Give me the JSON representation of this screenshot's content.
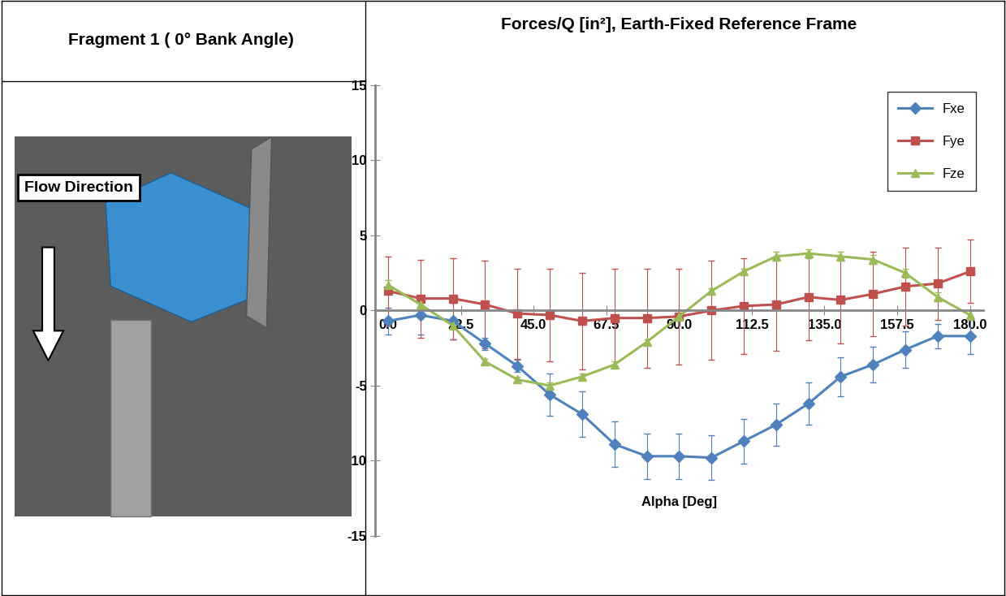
{
  "panel": {
    "title": "Fragment 1 ( 0° Bank Angle)",
    "label": "Flow Direction"
  },
  "chart_data": {
    "type": "line",
    "title": "Forces/Q [in²], Earth-Fixed Reference Frame",
    "x_label": "Alpha [Deg]",
    "x": [
      0,
      10,
      20,
      30,
      40,
      50,
      60,
      70,
      80,
      90,
      100,
      110,
      120,
      130,
      140,
      150,
      160,
      170,
      180
    ],
    "xlim": [
      -4,
      184
    ],
    "xticks": [
      {
        "value": 0,
        "label": "0.0"
      },
      22.5,
      {
        "value": 45,
        "label": "45.0"
      },
      67.5,
      {
        "value": 90,
        "label": "90.0"
      },
      112.5,
      {
        "value": 135,
        "label": "135.0"
      },
      157.5,
      {
        "value": 180,
        "label": "180.0"
      }
    ],
    "ylim": [
      -15,
      15
    ],
    "yticks": [
      -15,
      -10,
      -5,
      0,
      5,
      10,
      15
    ],
    "grid": false,
    "legend": "upper right",
    "series": [
      {
        "name": "Fxe",
        "color": "#4f81bd",
        "marker": "diamond",
        "values": [
          -0.7,
          -0.3,
          -0.7,
          -2.2,
          -3.7,
          -5.6,
          -6.9,
          -8.9,
          -9.7,
          -9.7,
          -9.8,
          -8.7,
          -7.6,
          -6.2,
          -4.4,
          -3.6,
          -2.6,
          -1.7,
          -1.7
        ],
        "error": [
          0.9,
          1.3,
          1.2,
          0.4,
          0.4,
          1.4,
          1.5,
          1.5,
          1.5,
          1.5,
          1.5,
          1.5,
          1.4,
          1.4,
          1.3,
          1.2,
          1.2,
          0.8,
          1.2
        ]
      },
      {
        "name": "Fye",
        "color": "#c0504d",
        "marker": "square",
        "values": [
          1.3,
          0.8,
          0.8,
          0.4,
          -0.2,
          -0.3,
          -0.7,
          -0.5,
          -0.5,
          -0.4,
          0.0,
          0.3,
          0.4,
          0.9,
          0.7,
          1.1,
          1.6,
          1.8,
          2.6
        ],
        "error": [
          2.3,
          2.6,
          2.7,
          2.9,
          3.0,
          3.1,
          3.2,
          3.3,
          3.3,
          3.2,
          3.3,
          3.2,
          3.1,
          2.9,
          2.9,
          2.8,
          2.6,
          2.4,
          2.1
        ]
      },
      {
        "name": "Fze",
        "color": "#9bbb59",
        "marker": "triangle",
        "values": [
          1.7,
          0.4,
          -1.0,
          -3.4,
          -4.6,
          -5.0,
          -4.4,
          -3.6,
          -2.1,
          -0.4,
          1.3,
          2.6,
          3.6,
          3.8,
          3.6,
          3.4,
          2.5,
          0.9,
          -0.3
        ],
        "error": [
          0.3,
          0.2,
          0.2,
          0.2,
          0.2,
          0.2,
          0.2,
          0.2,
          0.2,
          0.2,
          0.2,
          0.2,
          0.3,
          0.3,
          0.3,
          0.3,
          0.3,
          0.3,
          0.3
        ]
      }
    ]
  }
}
